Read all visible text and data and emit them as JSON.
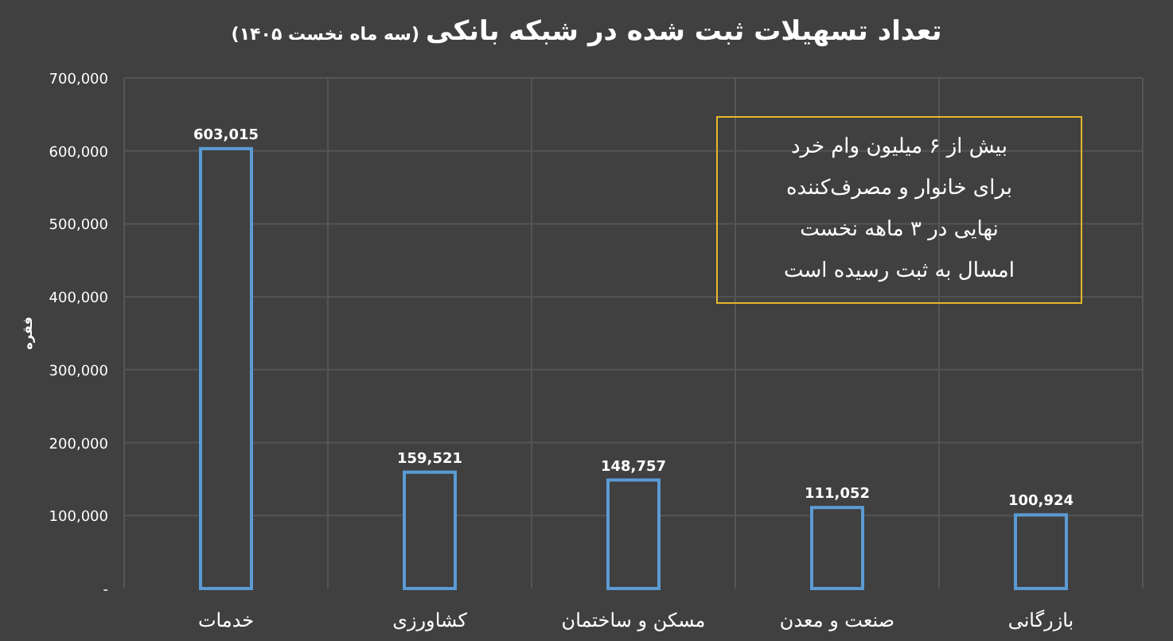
{
  "chart_data": {
    "type": "bar",
    "title": "تعداد تسهیلات ثبت شده در شبکه بانکی",
    "subtitle": "(سه ماه نخست ۱۴۰۵)",
    "ylabel": "فقره",
    "categories": [
      "خدمات",
      "کشاورزی",
      "مسکن و ساختمان",
      "صنعت و معدن",
      "بازرگانی"
    ],
    "values": [
      603015,
      159521,
      148757,
      111052,
      100924
    ],
    "color": "#5b9bd5",
    "value_labels": [
      "603,015",
      "159,521",
      "148,757",
      "111,052",
      "100,924"
    ],
    "grid": true,
    "ylim": [
      0,
      700000
    ],
    "yticks": [
      {
        "value": 0,
        "label": "-"
      },
      {
        "value": 100000,
        "label": "100,000"
      },
      {
        "value": 200000,
        "label": "200,000"
      },
      {
        "value": 300000,
        "label": "300,000"
      },
      {
        "value": 400000,
        "label": "400,000"
      },
      {
        "value": 500000,
        "label": "500,000"
      },
      {
        "value": 600000,
        "label": "600,000"
      },
      {
        "value": 700000,
        "label": "700,000"
      }
    ],
    "annotations": [
      "بیش از ۶ میلیون وام خرد برای خانوار و مصرف‌کننده نهایی در ۳ ماهه نخست امسال به ثبت رسیده است"
    ]
  }
}
